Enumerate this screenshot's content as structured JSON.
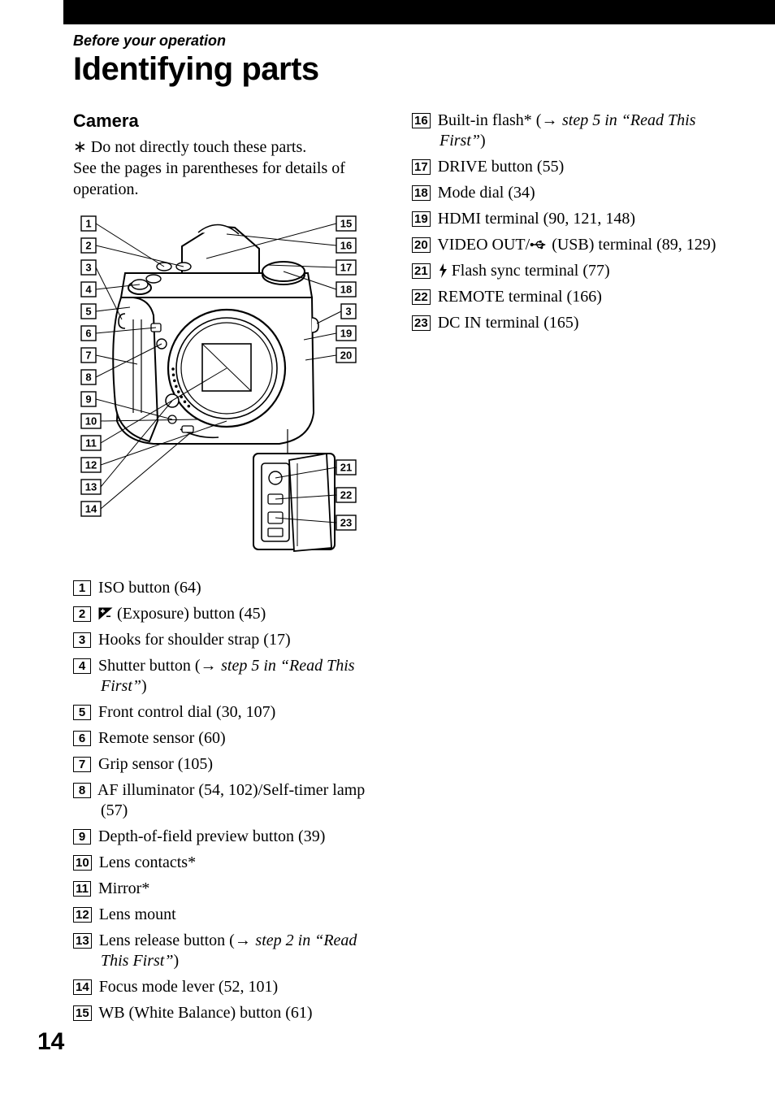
{
  "page_number": "14",
  "section_label": "Before your operation",
  "page_title": "Identifying parts",
  "subhead": "Camera",
  "intro_note": "∗  Do not directly touch these parts.",
  "intro_text": "See the pages in parentheses for details of operation.",
  "diagram": {
    "left_labels": [
      "1",
      "2",
      "3",
      "4",
      "5",
      "6",
      "7",
      "8",
      "9",
      "10",
      "11",
      "12",
      "13",
      "14"
    ],
    "right_labels_top": [
      "15",
      "16",
      "17",
      "18",
      "3",
      "19",
      "20"
    ],
    "right_labels_bottom": [
      "21",
      "22",
      "23"
    ],
    "stroke": "#000000",
    "label_font_size": 13
  },
  "left_items": [
    {
      "n": "1",
      "text": "ISO button (64)"
    },
    {
      "n": "2",
      "icon": "exposure",
      "text": " (Exposure) button (45)"
    },
    {
      "n": "3",
      "text": "Hooks for shoulder strap (17)"
    },
    {
      "n": "4",
      "text_pre": "Shutter button (",
      "arrow": true,
      "ref": "step 5 in “Read This First”",
      "text_post": ")"
    },
    {
      "n": "5",
      "text": "Front control dial (30, 107)"
    },
    {
      "n": "6",
      "text": "Remote sensor (60)"
    },
    {
      "n": "7",
      "text": "Grip sensor (105)"
    },
    {
      "n": "8",
      "text": "AF illuminator (54, 102)/Self-timer lamp (57)"
    },
    {
      "n": "9",
      "text": "Depth-of-field preview button (39)"
    },
    {
      "n": "10",
      "text": "Lens contacts*"
    },
    {
      "n": "11",
      "text": "Mirror*"
    },
    {
      "n": "12",
      "text": "Lens mount"
    },
    {
      "n": "13",
      "text_pre": "Lens release button (",
      "arrow": true,
      "ref": "step 2 in “Read This First”",
      "text_post": ")"
    },
    {
      "n": "14",
      "text": "Focus mode lever (52, 101)"
    },
    {
      "n": "15",
      "text": "WB (White Balance) button (61)"
    }
  ],
  "right_items": [
    {
      "n": "16",
      "text_pre": "Built-in flash* (",
      "arrow": true,
      "ref": "step 5 in “Read This First”",
      "text_post": ")"
    },
    {
      "n": "17",
      "text": "DRIVE button (55)"
    },
    {
      "n": "18",
      "text": "Mode dial (34)"
    },
    {
      "n": "19",
      "text": "HDMI terminal (90, 121, 148)"
    },
    {
      "n": "20",
      "text_pre": "VIDEO OUT/",
      "icon": "usb",
      "text_post": " (USB) terminal (89, 129)"
    },
    {
      "n": "21",
      "icon": "flash",
      "text": " Flash sync terminal (77)"
    },
    {
      "n": "22",
      "text": "REMOTE terminal (166)"
    },
    {
      "n": "23",
      "text": "DC IN terminal (165)"
    }
  ]
}
